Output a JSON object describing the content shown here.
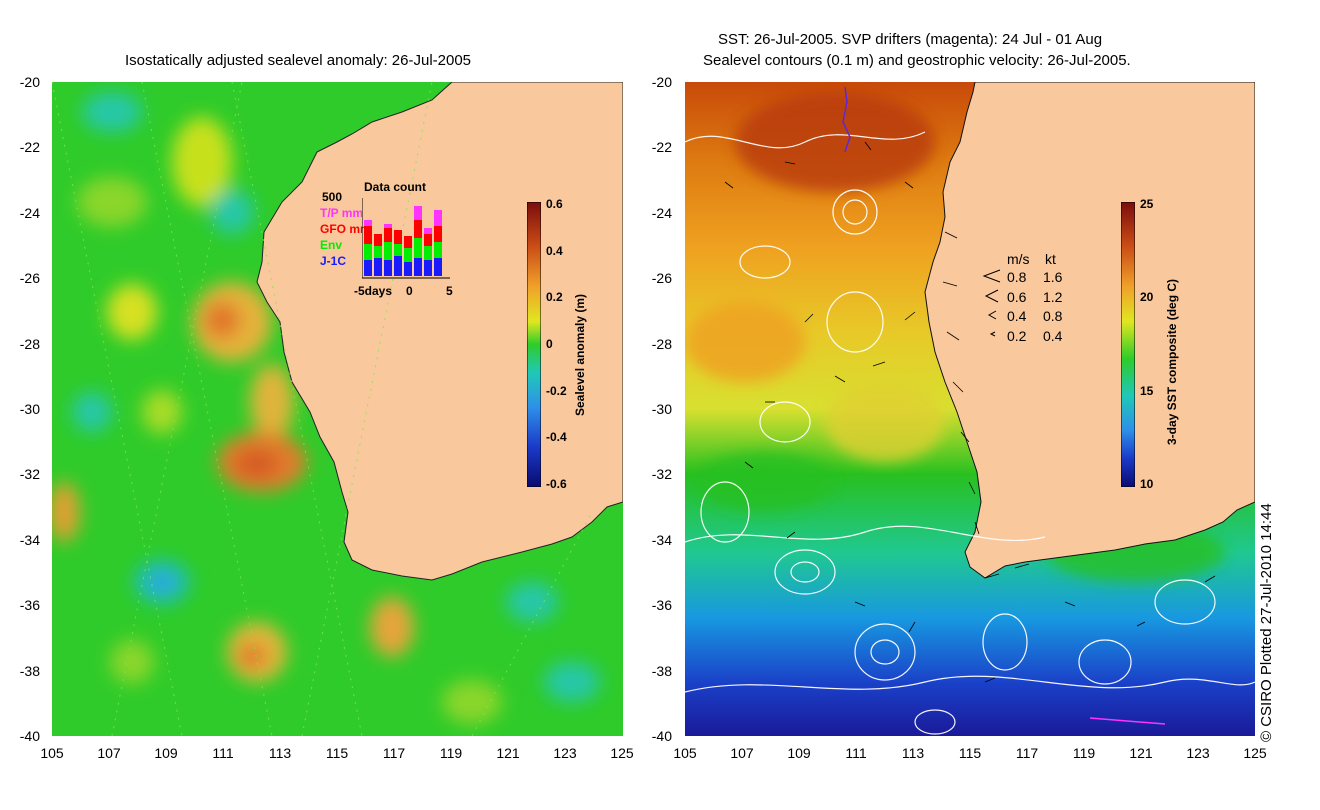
{
  "left_panel": {
    "title": "Isostatically adjusted sealevel anomaly: 26-Jul-2005",
    "y_ticks": [
      "-20",
      "-22",
      "-24",
      "-26",
      "-28",
      "-30",
      "-32",
      "-34",
      "-36",
      "-38",
      "-40"
    ],
    "x_ticks": [
      "105",
      "107",
      "109",
      "111",
      "113",
      "115",
      "117",
      "119",
      "121",
      "123",
      "125"
    ],
    "colorbar": {
      "label": "Sealevel anomaly (m)",
      "ticks": [
        "0.6",
        "0.4",
        "0.2",
        "0",
        "-0.2",
        "-0.4",
        "-0.6"
      ]
    },
    "data_count": {
      "title": "Data count",
      "max_label": "500",
      "legend": [
        {
          "label": "T/P mm",
          "color": "#ff33ff"
        },
        {
          "label": "GFO mm",
          "color": "#ff0000"
        },
        {
          "label": "Env",
          "color": "#00ee00"
        },
        {
          "label": "J-1C",
          "color": "#1a1aff"
        }
      ],
      "x_labels": [
        "-5days",
        "0",
        "5"
      ]
    }
  },
  "right_panel": {
    "title_line1": "SST: 26-Jul-2005. SVP drifters (magenta): 24 Jul - 01 Aug",
    "title_line2": "Sealevel contours (0.1 m) and geostrophic velocity: 26-Jul-2005.",
    "y_ticks": [
      "-20",
      "-22",
      "-24",
      "-26",
      "-28",
      "-30",
      "-32",
      "-34",
      "-36",
      "-38",
      "-40"
    ],
    "x_ticks": [
      "105",
      "107",
      "109",
      "111",
      "113",
      "115",
      "117",
      "119",
      "121",
      "123",
      "125"
    ],
    "colorbar": {
      "label": "3-day SST composite (deg C)",
      "ticks": [
        "25",
        "20",
        "15",
        "10"
      ]
    },
    "velocity_legend": {
      "header_ms": "m/s",
      "header_kt": "kt",
      "rows": [
        {
          "ms": "0.8",
          "kt": "1.6"
        },
        {
          "ms": "0.6",
          "kt": "1.2"
        },
        {
          "ms": "0.4",
          "kt": "0.8"
        },
        {
          "ms": "0.2",
          "kt": "0.4"
        }
      ]
    }
  },
  "credit": "© CSIRO Plotted 27-Jul-2010 14:44",
  "colors": {
    "land": "#f9c89c",
    "ssh_background": "#22cc22",
    "sst_warm": "#c84a0a",
    "sst_cold": "#1a2aa8"
  }
}
